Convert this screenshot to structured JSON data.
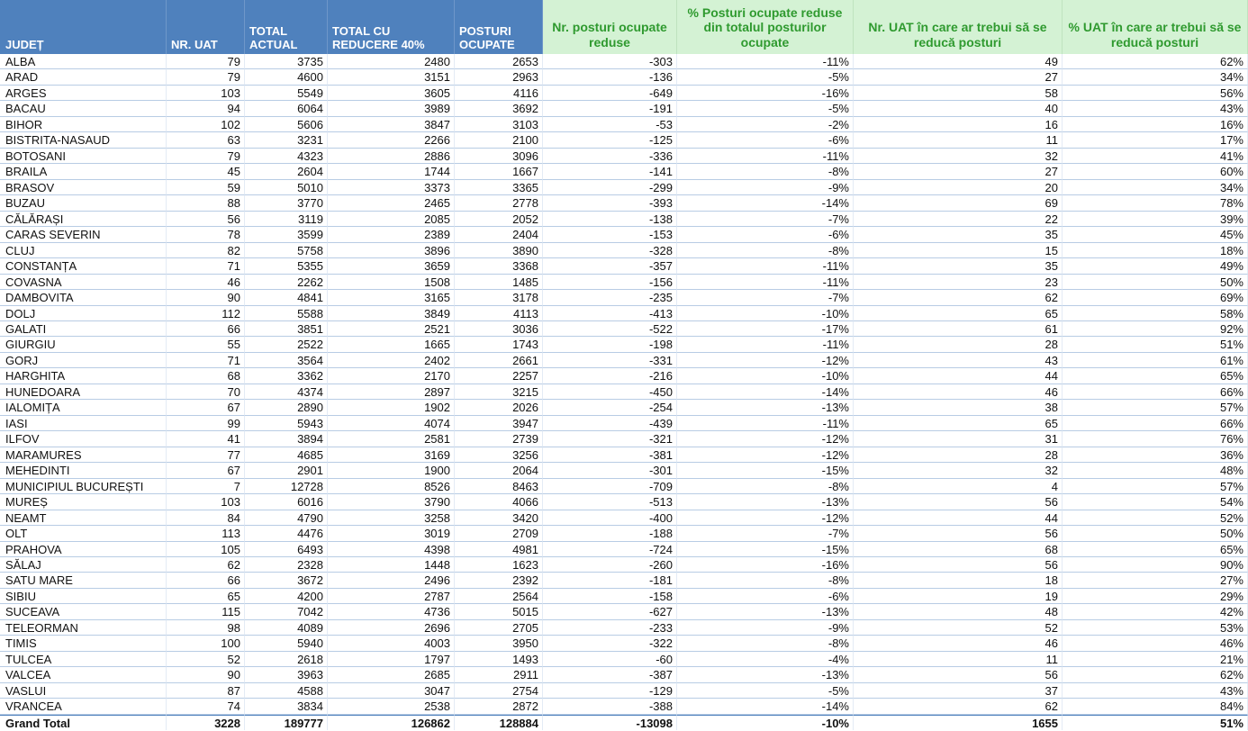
{
  "table": {
    "header": [
      "JUDEȚ",
      "NR. UAT",
      "TOTAL ACTUAL",
      "TOTAL CU REDUCERE 40%",
      "POSTURI OCUPATE",
      "Nr. posturi ocupate reduse",
      "% Posturi ocupate reduse din totalul posturilor ocupate",
      "Nr. UAT în care ar trebui să se reducă posturi",
      "% UAT în care ar trebui să se reducă posturi"
    ],
    "rows": [
      [
        "ALBA",
        "79",
        "3735",
        "2480",
        "2653",
        "-303",
        "-11%",
        "49",
        "62%"
      ],
      [
        "ARAD",
        "79",
        "4600",
        "3151",
        "2963",
        "-136",
        "-5%",
        "27",
        "34%"
      ],
      [
        "ARGES",
        "103",
        "5549",
        "3605",
        "4116",
        "-649",
        "-16%",
        "58",
        "56%"
      ],
      [
        "BACAU",
        "94",
        "6064",
        "3989",
        "3692",
        "-191",
        "-5%",
        "40",
        "43%"
      ],
      [
        "BIHOR",
        "102",
        "5606",
        "3847",
        "3103",
        "-53",
        "-2%",
        "16",
        "16%"
      ],
      [
        "BISTRITA-NASAUD",
        "63",
        "3231",
        "2266",
        "2100",
        "-125",
        "-6%",
        "11",
        "17%"
      ],
      [
        "BOTOSANI",
        "79",
        "4323",
        "2886",
        "3096",
        "-336",
        "-11%",
        "32",
        "41%"
      ],
      [
        "BRAILA",
        "45",
        "2604",
        "1744",
        "1667",
        "-141",
        "-8%",
        "27",
        "60%"
      ],
      [
        "BRASOV",
        "59",
        "5010",
        "3373",
        "3365",
        "-299",
        "-9%",
        "20",
        "34%"
      ],
      [
        "BUZAU",
        "88",
        "3770",
        "2465",
        "2778",
        "-393",
        "-14%",
        "69",
        "78%"
      ],
      [
        "CĂLĂRAȘI",
        "56",
        "3119",
        "2085",
        "2052",
        "-138",
        "-7%",
        "22",
        "39%"
      ],
      [
        "CARAS SEVERIN",
        "78",
        "3599",
        "2389",
        "2404",
        "-153",
        "-6%",
        "35",
        "45%"
      ],
      [
        "CLUJ",
        "82",
        "5758",
        "3896",
        "3890",
        "-328",
        "-8%",
        "15",
        "18%"
      ],
      [
        "CONSTANȚA",
        "71",
        "5355",
        "3659",
        "3368",
        "-357",
        "-11%",
        "35",
        "49%"
      ],
      [
        "COVASNA",
        "46",
        "2262",
        "1508",
        "1485",
        "-156",
        "-11%",
        "23",
        "50%"
      ],
      [
        "DAMBOVITA",
        "90",
        "4841",
        "3165",
        "3178",
        "-235",
        "-7%",
        "62",
        "69%"
      ],
      [
        "DOLJ",
        "112",
        "5588",
        "3849",
        "4113",
        "-413",
        "-10%",
        "65",
        "58%"
      ],
      [
        "GALATI",
        "66",
        "3851",
        "2521",
        "3036",
        "-522",
        "-17%",
        "61",
        "92%"
      ],
      [
        "GIURGIU",
        "55",
        "2522",
        "1665",
        "1743",
        "-198",
        "-11%",
        "28",
        "51%"
      ],
      [
        "GORJ",
        "71",
        "3564",
        "2402",
        "2661",
        "-331",
        "-12%",
        "43",
        "61%"
      ],
      [
        "HARGHITA",
        "68",
        "3362",
        "2170",
        "2257",
        "-216",
        "-10%",
        "44",
        "65%"
      ],
      [
        "HUNEDOARA",
        "70",
        "4374",
        "2897",
        "3215",
        "-450",
        "-14%",
        "46",
        "66%"
      ],
      [
        "IALOMIȚA",
        "67",
        "2890",
        "1902",
        "2026",
        "-254",
        "-13%",
        "38",
        "57%"
      ],
      [
        "IASI",
        "99",
        "5943",
        "4074",
        "3947",
        "-439",
        "-11%",
        "65",
        "66%"
      ],
      [
        "ILFOV",
        "41",
        "3894",
        "2581",
        "2739",
        "-321",
        "-12%",
        "31",
        "76%"
      ],
      [
        "MARAMURES",
        "77",
        "4685",
        "3169",
        "3256",
        "-381",
        "-12%",
        "28",
        "36%"
      ],
      [
        "MEHEDINTI",
        "67",
        "2901",
        "1900",
        "2064",
        "-301",
        "-15%",
        "32",
        "48%"
      ],
      [
        "MUNICIPIUL BUCUREȘTI",
        "7",
        "12728",
        "8526",
        "8463",
        "-709",
        "-8%",
        "4",
        "57%"
      ],
      [
        "MUREȘ",
        "103",
        "6016",
        "3790",
        "4066",
        "-513",
        "-13%",
        "56",
        "54%"
      ],
      [
        "NEAMT",
        "84",
        "4790",
        "3258",
        "3420",
        "-400",
        "-12%",
        "44",
        "52%"
      ],
      [
        "OLT",
        "113",
        "4476",
        "3019",
        "2709",
        "-188",
        "-7%",
        "56",
        "50%"
      ],
      [
        "PRAHOVA",
        "105",
        "6493",
        "4398",
        "4981",
        "-724",
        "-15%",
        "68",
        "65%"
      ],
      [
        "SĂLAJ",
        "62",
        "2328",
        "1448",
        "1623",
        "-260",
        "-16%",
        "56",
        "90%"
      ],
      [
        "SATU MARE",
        "66",
        "3672",
        "2496",
        "2392",
        "-181",
        "-8%",
        "18",
        "27%"
      ],
      [
        "SIBIU",
        "65",
        "4200",
        "2787",
        "2564",
        "-158",
        "-6%",
        "19",
        "29%"
      ],
      [
        "SUCEAVA",
        "115",
        "7042",
        "4736",
        "5015",
        "-627",
        "-13%",
        "48",
        "42%"
      ],
      [
        "TELEORMAN",
        "98",
        "4089",
        "2696",
        "2705",
        "-233",
        "-9%",
        "52",
        "53%"
      ],
      [
        "TIMIS",
        "100",
        "5940",
        "4003",
        "3950",
        "-322",
        "-8%",
        "46",
        "46%"
      ],
      [
        "TULCEA",
        "52",
        "2618",
        "1797",
        "1493",
        "-60",
        "-4%",
        "11",
        "21%"
      ],
      [
        "VALCEA",
        "90",
        "3963",
        "2685",
        "2911",
        "-387",
        "-13%",
        "56",
        "62%"
      ],
      [
        "VASLUI",
        "87",
        "4588",
        "3047",
        "2754",
        "-129",
        "-5%",
        "37",
        "43%"
      ],
      [
        "VRANCEA",
        "74",
        "3834",
        "2538",
        "2872",
        "-388",
        "-14%",
        "62",
        "84%"
      ]
    ],
    "total": [
      "Grand Total",
      "3228",
      "189777",
      "126862",
      "128884",
      "-13098",
      "-10%",
      "1655",
      "51%"
    ]
  }
}
